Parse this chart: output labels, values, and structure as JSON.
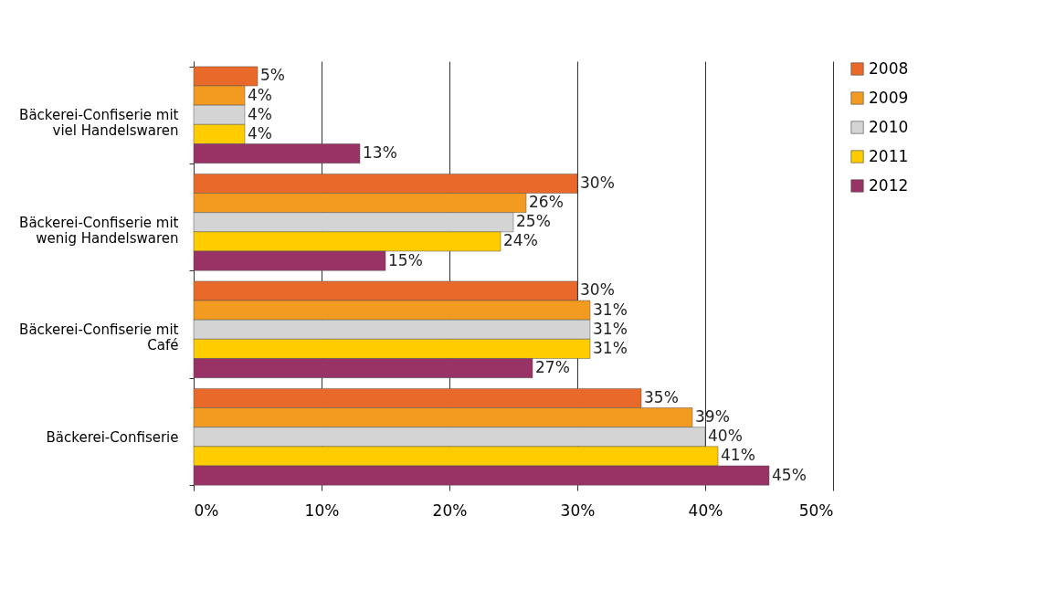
{
  "chart_data": {
    "type": "bar",
    "orientation": "horizontal",
    "categories": [
      "Bäckerei-Confiserie mit viel Handelswaren",
      "Bäckerei-Confiserie mit wenig Handelswaren",
      "Bäckerei-Confiserie mit Café",
      "Bäckerei-Confiserie"
    ],
    "series": [
      {
        "name": "2008",
        "color": "#e8692a",
        "values": [
          5,
          30,
          30,
          35
        ],
        "value_labels": [
          "5%",
          "30%",
          "30%",
          "35%"
        ]
      },
      {
        "name": "2009",
        "color": "#f39a21",
        "values": [
          4,
          26,
          31,
          39
        ],
        "value_labels": [
          "4%",
          "26%",
          "31%",
          "39%"
        ]
      },
      {
        "name": "2010",
        "color": "#d4d4d4",
        "values": [
          4,
          25,
          31,
          40
        ],
        "value_labels": [
          "4%",
          "25%",
          "31%",
          "40%"
        ]
      },
      {
        "name": "2011",
        "color": "#ffcc00",
        "values": [
          4,
          24,
          31,
          41
        ],
        "value_labels": [
          "4%",
          "24%",
          "31%",
          "41%"
        ]
      },
      {
        "name": "2012",
        "color": "#993366",
        "values": [
          13,
          15,
          26.5,
          45
        ],
        "value_labels": [
          "13%",
          "15%",
          "27%",
          "45%"
        ]
      }
    ],
    "xlim": [
      0,
      50
    ],
    "xticks": [
      {
        "value": 0,
        "label": "0%"
      },
      {
        "value": 10,
        "label": "10%"
      },
      {
        "value": 20,
        "label": "20%"
      },
      {
        "value": 30,
        "label": "30%"
      },
      {
        "value": 40,
        "label": "40%"
      },
      {
        "value": 50,
        "label": "50%"
      }
    ],
    "grid": "x",
    "legend": "right"
  }
}
